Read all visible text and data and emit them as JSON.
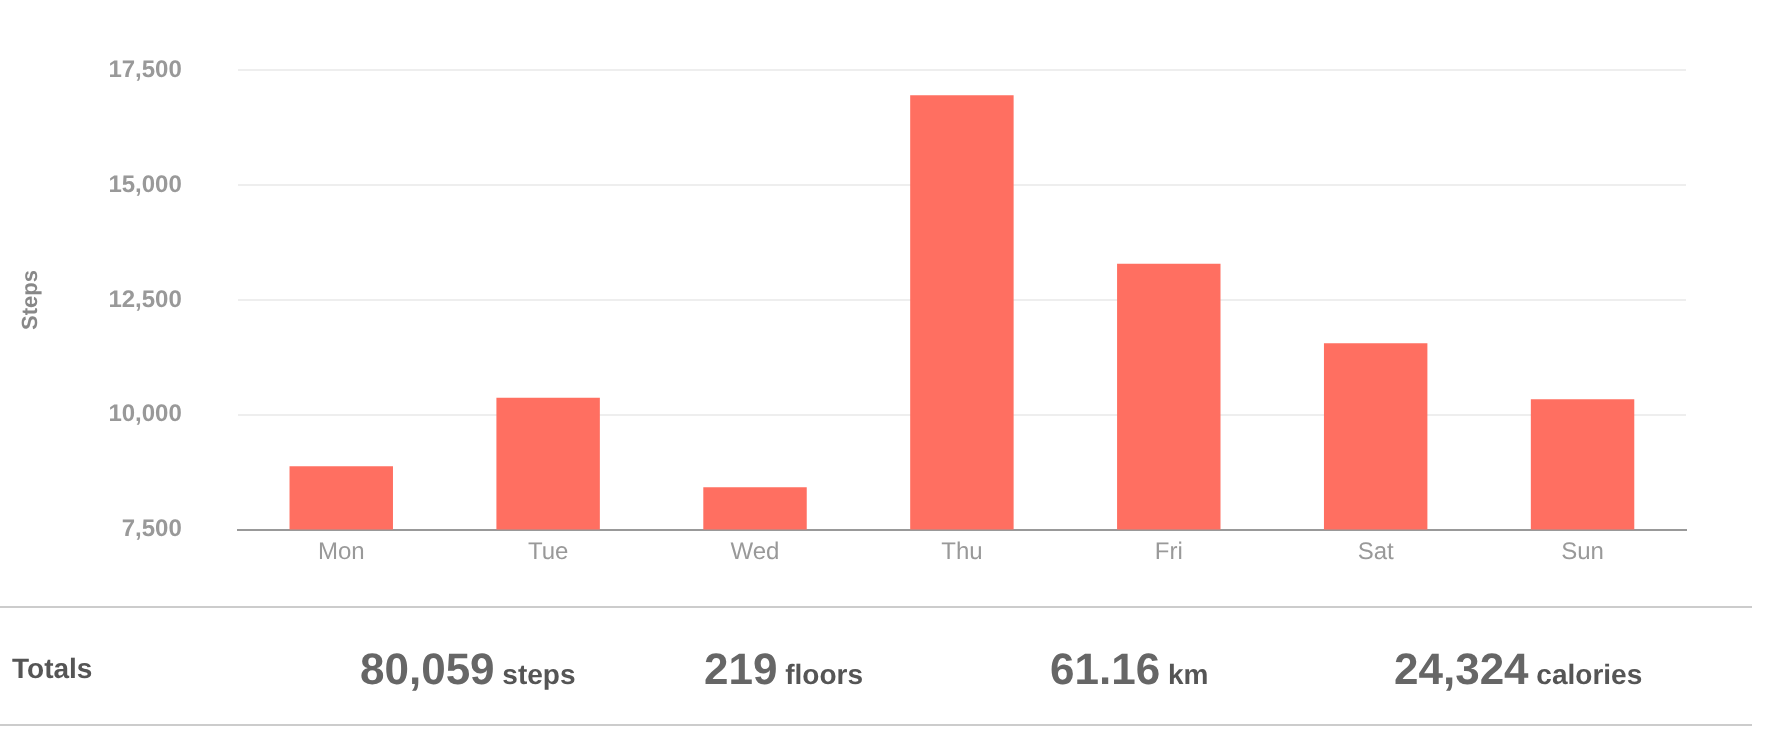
{
  "chart_data": {
    "type": "bar",
    "ylabel": "Steps",
    "categories": [
      "Mon",
      "Tue",
      "Wed",
      "Thu",
      "Fri",
      "Sat",
      "Sun"
    ],
    "values": [
      8880,
      10370,
      8420,
      16960,
      13290,
      11560,
      10340
    ],
    "color": "#ff6f61",
    "ylim": [
      7500,
      17500
    ],
    "yticks": [
      {
        "value": 7500,
        "label": "7,500"
      },
      {
        "value": 10000,
        "label": "10,000"
      },
      {
        "value": 12500,
        "label": "12,500"
      },
      {
        "value": 15000,
        "label": "15,000"
      },
      {
        "value": 17500,
        "label": "17,500"
      }
    ],
    "grid": "y",
    "legend": false,
    "annotations": [
      "Totals",
      "80,059 steps",
      "219 floors",
      "61.16 km",
      "24,324 calories"
    ]
  }
}
